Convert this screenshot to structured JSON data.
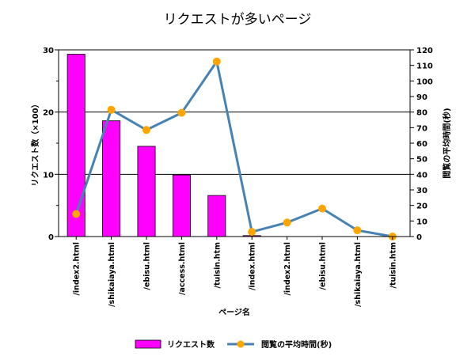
{
  "chart_data": {
    "type": "bar+line",
    "title": "リクエストが多いページ",
    "xlabel": "ページ名",
    "categories": [
      "/index2.html",
      "/shikaiaya.html",
      "/ebisu.html",
      "/access.html",
      "/tuisin.htm",
      "/index.html",
      "/index2.html",
      "/ebisu.html",
      "/shikaiaya.html",
      "/tuisin.htm"
    ],
    "y_left": {
      "label": "リクエスト数（×100）",
      "range": [
        0,
        30
      ],
      "ticks": [
        0,
        10,
        20,
        30
      ],
      "minor_step": 5
    },
    "y_right": {
      "label": "閲覧の平均時間(秒)",
      "range": [
        0,
        120
      ],
      "ticks": [
        0,
        10,
        20,
        30,
        40,
        50,
        60,
        70,
        80,
        90,
        100,
        110,
        120
      ]
    },
    "series": [
      {
        "name": "リクエスト数",
        "type": "bar",
        "axis": "left",
        "color": "#ff00ff",
        "values": [
          29.3,
          18.6,
          14.5,
          9.9,
          6.6,
          0.15,
          null,
          null,
          null,
          null
        ]
      },
      {
        "name": "閲覧の平均時間(秒)",
        "type": "line",
        "axis": "right",
        "color": "#4682b4",
        "marker_color": "#ffa500",
        "values": [
          14.5,
          81.5,
          68.5,
          79.5,
          112.5,
          3,
          9,
          18,
          4,
          0
        ]
      }
    ],
    "grid": "horizontal at left major ticks",
    "legend_position": "bottom"
  }
}
